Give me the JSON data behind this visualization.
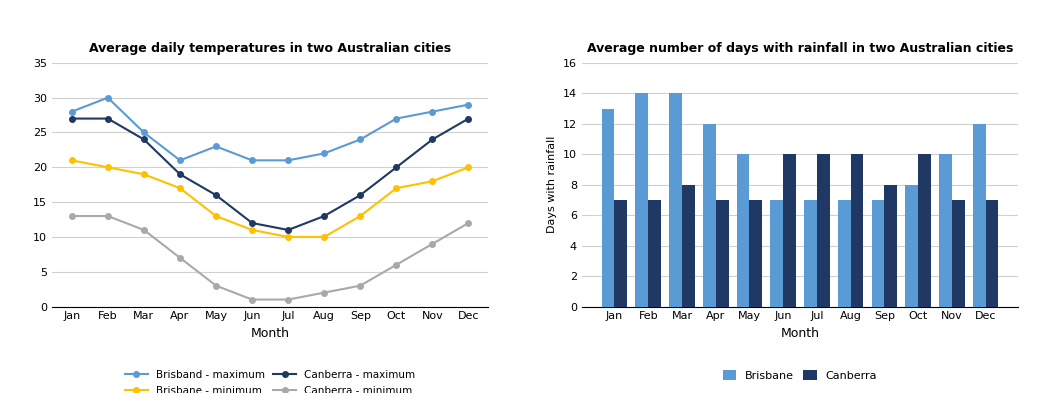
{
  "months": [
    "Jan",
    "Feb",
    "Mar",
    "Apr",
    "May",
    "Jun",
    "Jul",
    "Aug",
    "Sep",
    "Oct",
    "Nov",
    "Dec"
  ],
  "brisbane_max": [
    28,
    30,
    25,
    21,
    23,
    21,
    21,
    22,
    24,
    27,
    28,
    29
  ],
  "brisbane_min": [
    21,
    20,
    19,
    17,
    13,
    11,
    10,
    10,
    13,
    17,
    18,
    20
  ],
  "canberra_max": [
    27,
    27,
    24,
    19,
    16,
    12,
    11,
    13,
    16,
    20,
    24,
    27
  ],
  "canberra_min": [
    13,
    13,
    11,
    7,
    3,
    1,
    1,
    2,
    3,
    6,
    9,
    12
  ],
  "brisbane_rainfall": [
    13,
    14,
    14,
    12,
    10,
    7,
    7,
    7,
    7,
    8,
    10,
    12
  ],
  "canberra_rainfall": [
    7,
    7,
    8,
    7,
    7,
    10,
    10,
    10,
    8,
    10,
    7,
    7
  ],
  "line_title": "Average daily temperatures in two Australian cities",
  "bar_title": "Average number of days with rainfall in two Australian cities",
  "x_label": "Month",
  "y_label_bar": "Days with rainfall",
  "brisbane_max_color": "#5b9bd5",
  "brisbane_min_color": "#ffc000",
  "canberra_max_color": "#1f3864",
  "canberra_min_color": "#a9a9a9",
  "brisbane_bar_color": "#5b9bd5",
  "canberra_bar_color": "#1f3864",
  "line_ylim": [
    0,
    35
  ],
  "line_yticks": [
    0,
    5,
    10,
    15,
    20,
    25,
    30,
    35
  ],
  "bar_ylim": [
    0,
    16
  ],
  "bar_yticks": [
    0,
    2,
    4,
    6,
    8,
    10,
    12,
    14,
    16
  ],
  "bg_color": "#ffffff",
  "grid_color": "#d0d0d0"
}
